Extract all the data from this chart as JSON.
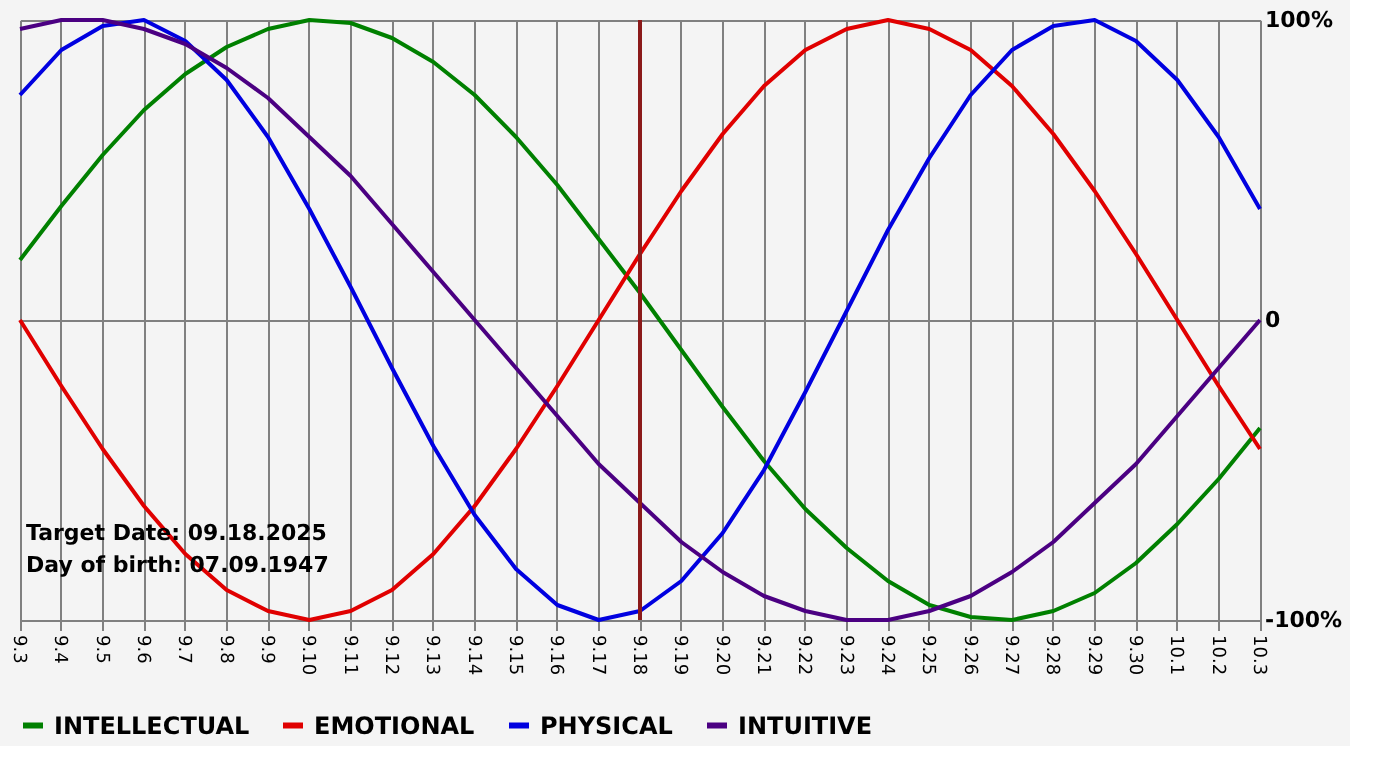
{
  "chart_data": {
    "type": "line",
    "categories": [
      "9.3",
      "9.4",
      "9.5",
      "9.6",
      "9.7",
      "9.8",
      "9.9",
      "9.10",
      "9.11",
      "9.12",
      "9.13",
      "9.14",
      "9.15",
      "9.16",
      "9.17",
      "9.18",
      "9.19",
      "9.20",
      "9.21",
      "9.22",
      "9.23",
      "9.24",
      "9.25",
      "9.26",
      "9.27",
      "9.28",
      "9.29",
      "9.30",
      "10.1",
      "10.2",
      "10.3"
    ],
    "series": [
      {
        "name": "INTELLECTUAL",
        "color": "#008000",
        "values": [
          20,
          38,
          55,
          70,
          82,
          91,
          97,
          100,
          99,
          94,
          86,
          75,
          61,
          45,
          27,
          9,
          -10,
          -29,
          -47,
          -63,
          -76,
          -87,
          -95,
          -99,
          -100,
          -97,
          -91,
          -81,
          -68,
          -53,
          -36
        ]
      },
      {
        "name": "EMOTIONAL",
        "color": "#e00000",
        "values": [
          0,
          -22,
          -43,
          -62,
          -78,
          -90,
          -97,
          -100,
          -97,
          -90,
          -78,
          -62,
          -43,
          -22,
          0,
          22,
          43,
          62,
          78,
          90,
          97,
          100,
          97,
          90,
          78,
          62,
          43,
          22,
          0,
          -22,
          -43
        ]
      },
      {
        "name": "PHYSICAL",
        "color": "#0000e0",
        "values": [
          75,
          90,
          98,
          100,
          93,
          80,
          61,
          37,
          11,
          -16,
          -42,
          -65,
          -83,
          -95,
          -100,
          -97,
          -87,
          -71,
          -50,
          -24,
          3,
          30,
          54,
          75,
          90,
          98,
          100,
          93,
          80,
          61,
          37
        ]
      },
      {
        "name": "INTUITIVE",
        "color": "#4b0082",
        "values": [
          97,
          100,
          100,
          97,
          92,
          84,
          74,
          61,
          48,
          32,
          16,
          0,
          -16,
          -32,
          -48,
          -61,
          -74,
          -84,
          -92,
          -97,
          -100,
          -100,
          -97,
          -92,
          -84,
          -74,
          -61,
          -48,
          -32,
          -16,
          0
        ]
      }
    ],
    "ylim": [
      -100,
      100
    ],
    "yticks": [
      {
        "value": -100,
        "label": "-100%"
      },
      0,
      {
        "value": 100,
        "label": "100%"
      }
    ],
    "grid": true,
    "legend": "bottom",
    "line_style": "solid",
    "ref_lines": [
      {
        "axis": "x",
        "value": "9.18",
        "color": "#8b1a1a"
      }
    ],
    "annotations": [
      "Target Date: 09.18.2025",
      "Day of birth: 07.09.1947"
    ]
  }
}
